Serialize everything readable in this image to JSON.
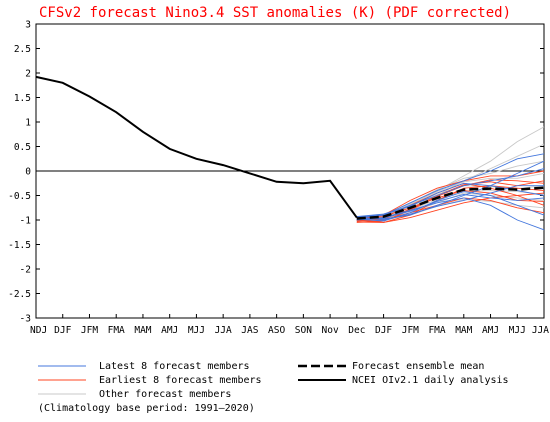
{
  "chart_data": {
    "type": "line",
    "title": "CFSv2 forecast Nino3.4 SST anomalies (K) (PDF corrected)",
    "xlabel": "",
    "ylabel": "",
    "x": [
      "NDJ",
      "DJF",
      "JFM",
      "FMA",
      "MAM",
      "AMJ",
      "MJJ",
      "JJA",
      "JAS",
      "ASO",
      "SON",
      "Nov",
      "Dec",
      "DJF",
      "JFM",
      "FMA",
      "MAM",
      "AMJ",
      "MJJ",
      "JJA"
    ],
    "ylim": [
      -3,
      3
    ],
    "yticks": [
      -3,
      -2.5,
      -2,
      -1.5,
      -1,
      -0.5,
      0,
      0.5,
      1,
      1.5,
      2,
      2.5,
      3
    ],
    "grid": false,
    "legend_position": "bottom",
    "colors": {
      "title": "#ff0000",
      "observed": "#000000",
      "ensemble_mean": "#000000",
      "latest_members": "#4477dd",
      "earliest_members": "#ff4422",
      "other_members": "#c8c8c8",
      "zero_line": "#000000"
    },
    "observed": {
      "name": "NCEI OIv2.1 daily analysis",
      "x": [
        0,
        1,
        2,
        3,
        4,
        5,
        6,
        7,
        8,
        9,
        10,
        11,
        12
      ],
      "values": [
        1.92,
        1.8,
        1.52,
        1.2,
        0.8,
        0.45,
        0.25,
        0.12,
        -0.05,
        -0.22,
        -0.25,
        -0.2,
        -0.95
      ]
    },
    "ensemble_mean": {
      "name": "Forecast ensemble mean",
      "x": [
        12,
        13,
        14,
        15,
        16,
        17,
        18,
        19
      ],
      "values": [
        -0.97,
        -0.93,
        -0.75,
        -0.55,
        -0.38,
        -0.36,
        -0.38,
        -0.34
      ]
    },
    "latest_members": {
      "name": "Latest 8 forecast members",
      "x": [
        12,
        13,
        14,
        15,
        16,
        17,
        18,
        19
      ],
      "series": [
        [
          -0.95,
          -0.98,
          -0.9,
          -0.7,
          -0.5,
          -0.3,
          -0.05,
          0.2
        ],
        [
          -0.98,
          -1.02,
          -0.85,
          -0.6,
          -0.42,
          -0.5,
          -0.7,
          -0.9
        ],
        [
          -0.96,
          -0.9,
          -0.7,
          -0.5,
          -0.3,
          -0.2,
          -0.1,
          0.05
        ],
        [
          -1.0,
          -0.95,
          -0.8,
          -0.65,
          -0.55,
          -0.7,
          -1.0,
          -1.2
        ],
        [
          -0.93,
          -0.88,
          -0.72,
          -0.45,
          -0.25,
          -0.3,
          -0.4,
          -0.5
        ],
        [
          -0.97,
          -0.96,
          -0.82,
          -0.62,
          -0.48,
          -0.55,
          -0.6,
          -0.55
        ],
        [
          -0.94,
          -0.9,
          -0.65,
          -0.4,
          -0.2,
          0.0,
          0.25,
          0.35
        ],
        [
          -0.99,
          -1.0,
          -0.88,
          -0.72,
          -0.6,
          -0.45,
          -0.3,
          -0.3
        ]
      ]
    },
    "earliest_members": {
      "name": "Earliest 8 forecast members",
      "x": [
        12,
        13,
        14,
        15,
        16,
        17,
        18,
        19
      ],
      "series": [
        [
          -1.0,
          -1.05,
          -0.9,
          -0.6,
          -0.35,
          -0.3,
          -0.35,
          -0.4
        ],
        [
          -1.05,
          -1.02,
          -0.8,
          -0.52,
          -0.3,
          -0.18,
          -0.2,
          -0.25
        ],
        [
          -0.95,
          -0.95,
          -0.7,
          -0.45,
          -0.25,
          -0.35,
          -0.5,
          -0.7
        ],
        [
          -1.02,
          -1.0,
          -0.85,
          -0.7,
          -0.55,
          -0.6,
          -0.75,
          -0.85
        ],
        [
          -0.98,
          -0.9,
          -0.6,
          -0.35,
          -0.2,
          -0.1,
          -0.1,
          0.0
        ],
        [
          -1.04,
          -1.05,
          -0.95,
          -0.8,
          -0.65,
          -0.55,
          -0.5,
          -0.45
        ],
        [
          -0.96,
          -0.92,
          -0.75,
          -0.55,
          -0.4,
          -0.45,
          -0.6,
          -0.62
        ],
        [
          -1.01,
          -0.98,
          -0.78,
          -0.5,
          -0.28,
          -0.22,
          -0.3,
          -0.2
        ]
      ]
    },
    "other_members": {
      "name": "Other forecast members",
      "x": [
        12,
        13,
        14,
        15,
        16,
        17,
        18,
        19
      ],
      "series": [
        [
          -0.95,
          -0.92,
          -0.7,
          -0.4,
          -0.1,
          0.2,
          0.6,
          0.9
        ],
        [
          -0.97,
          -0.95,
          -0.75,
          -0.5,
          -0.2,
          0.05,
          0.3,
          0.55
        ],
        [
          -1.0,
          -0.98,
          -0.85,
          -0.65,
          -0.45,
          -0.5,
          -0.55,
          -0.6
        ],
        [
          -0.94,
          -0.88,
          -0.68,
          -0.42,
          -0.22,
          -0.15,
          -0.15,
          -0.05
        ],
        [
          -0.99,
          -1.0,
          -0.9,
          -0.72,
          -0.58,
          -0.62,
          -0.7,
          -0.75
        ],
        [
          -0.96,
          -0.93,
          -0.72,
          -0.48,
          -0.3,
          -0.32,
          -0.36,
          -0.3
        ],
        [
          -1.02,
          -0.97,
          -0.8,
          -0.58,
          -0.42,
          -0.4,
          -0.42,
          -0.48
        ],
        [
          -0.93,
          -0.9,
          -0.66,
          -0.38,
          -0.15,
          -0.05,
          0.1,
          0.2
        ]
      ]
    }
  },
  "legend": [
    {
      "label": "Latest 8 forecast members",
      "style": "latest"
    },
    {
      "label": "Forecast ensemble mean",
      "style": "mean"
    },
    {
      "label": "Earliest 8 forecast members",
      "style": "earliest"
    },
    {
      "label": "NCEI OIv2.1 daily analysis",
      "style": "observed"
    },
    {
      "label": "Other forecast members",
      "style": "other"
    }
  ],
  "footer": {
    "climatology_note": "(Climatology base period: 1991–2020)"
  }
}
